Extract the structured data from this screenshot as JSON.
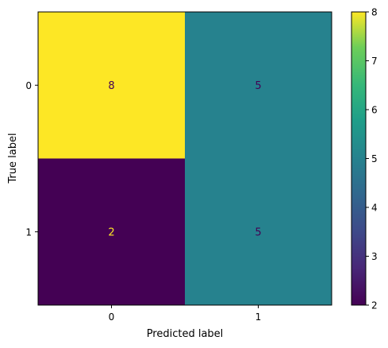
{
  "chart_data": {
    "type": "heatmap",
    "title": "",
    "xlabel": "Predicted label",
    "ylabel": "True label",
    "x_categories": [
      "0",
      "1"
    ],
    "y_categories": [
      "0",
      "1"
    ],
    "values": [
      [
        8,
        5
      ],
      [
        2,
        5
      ]
    ],
    "value_range": [
      2,
      8
    ],
    "colormap": "viridis",
    "colorbar_ticks": [
      "2",
      "3",
      "4",
      "5",
      "6",
      "7",
      "8"
    ],
    "grid": false
  }
}
